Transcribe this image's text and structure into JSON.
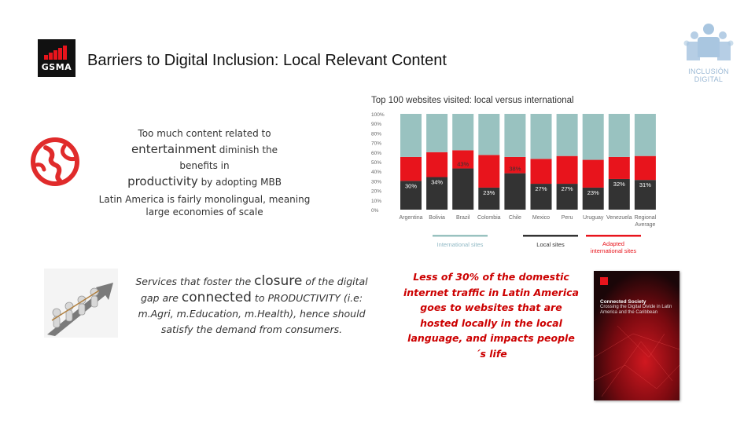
{
  "header": {
    "logo_text": "GSMA",
    "title": "Barriers to Digital Inclusion: Local Relevant Content",
    "badge_line1": "INCLUSIÓN",
    "badge_line2": "DIGITAL"
  },
  "content": {
    "p1_line1": "Too much content related to",
    "p1_word1": "entertainment",
    "p1_line2_rest": " diminish the benefits in",
    "p1_word2": "productivity",
    "p1_line3_rest": " by adopting MBB",
    "p2": "Latin America is fairly monolingual, meaning large economies of scale",
    "p3_a": "Services that foster the ",
    "p3_b": "closure",
    "p3_c": " of the digital gap are ",
    "p3_d": "connected",
    "p3_e": " to PRODUCTIVITY (i.e: m.Agri, m.Education, m.Health), hence should satisfy the demand from consumers.",
    "quote": "Less of 30% of the domestic internet traffic in Latin America goes to websites that are hosted locally in the local language, and impacts people´s life"
  },
  "book": {
    "title": "Connected Society",
    "subtitle": "Crossing the Digital Divide in Latin America and the Caribbean"
  },
  "colors": {
    "international": "#99c2c0",
    "local": "#333333",
    "adapted": "#e8141c",
    "brand": "#cc0000"
  },
  "chart_data": {
    "type": "bar",
    "stacked": true,
    "title": "Top 100 websites visited: local versus international",
    "categories": [
      "Argentina",
      "Bolivia",
      "Brazil",
      "Colombia",
      "Chile",
      "Mexico",
      "Peru",
      "Uruguay",
      "Venezuela",
      "Regional Average"
    ],
    "series": [
      {
        "name": "Local sites",
        "values": [
          30,
          34,
          43,
          23,
          38,
          27,
          27,
          23,
          32,
          31
        ]
      },
      {
        "name": "Adapted international sites",
        "values": [
          25,
          26,
          19,
          34,
          17,
          26,
          29,
          29,
          23,
          25
        ]
      },
      {
        "name": "International sites",
        "values": [
          45,
          40,
          38,
          43,
          45,
          47,
          44,
          48,
          45,
          44
        ]
      }
    ],
    "data_labels": [
      "30%",
      "34%",
      "43%",
      "23%",
      "38%",
      "27%",
      "27%",
      "23%",
      "32%",
      "31%"
    ],
    "y_ticks": [
      "0%",
      "10%",
      "20%",
      "30%",
      "40%",
      "50%",
      "60%",
      "70%",
      "80%",
      "90%",
      "100%"
    ],
    "ylim": [
      0,
      100
    ],
    "legend_labels": [
      "International sites",
      "Local sites",
      "Adapted international sites"
    ],
    "legend_placement": "bottom"
  }
}
